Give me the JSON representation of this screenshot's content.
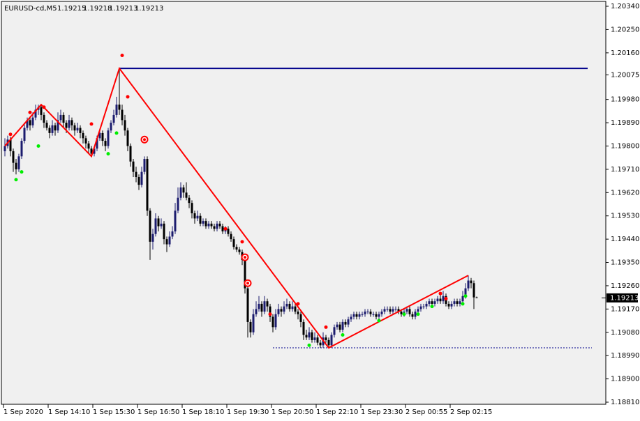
{
  "chart_data": {
    "type": "candlestick",
    "title": "EURUSD-cd,M5",
    "categories": [
      "1 Sep 2020",
      null,
      null,
      null,
      null,
      null,
      null,
      null,
      null,
      null,
      null,
      null,
      null,
      null,
      null,
      null,
      "1 Sep 14:10",
      null,
      null,
      null,
      null,
      null,
      null,
      null,
      null,
      null,
      null,
      null,
      null,
      null,
      null,
      null,
      "1 Sep 15:30",
      null,
      null,
      null,
      null,
      null,
      null,
      null,
      null,
      null,
      null,
      null,
      null,
      null,
      null,
      null,
      "1 Sep 16:50",
      null,
      null,
      null,
      null,
      null,
      null,
      null,
      null,
      null,
      null,
      null,
      null,
      null,
      null,
      null,
      "1 Sep 18:10",
      null,
      null,
      null,
      null,
      null,
      null,
      null,
      null,
      null,
      null,
      null,
      null,
      null,
      null,
      null,
      "1 Sep 19:30",
      null,
      null,
      null,
      null,
      null,
      null,
      null,
      null,
      null,
      null,
      null,
      null,
      null,
      null,
      null,
      "1 Sep 20:50",
      null,
      null,
      null,
      null,
      null,
      null,
      null,
      null,
      null,
      null,
      null,
      null,
      null,
      null,
      null,
      "1 Sep 22:10",
      null,
      null,
      null,
      null,
      null,
      null,
      null,
      null,
      null,
      null,
      null,
      null,
      null,
      null,
      null,
      "1 Sep 23:30",
      null,
      null,
      null,
      null,
      null,
      null,
      null,
      null,
      null,
      null,
      null,
      null,
      null,
      null,
      null,
      "2 Sep 00:55",
      null,
      null,
      null,
      null,
      null,
      null,
      null,
      null,
      null,
      null,
      null,
      null,
      null,
      null,
      null,
      "2 Sep 02:15",
      null,
      null,
      null,
      null,
      null,
      null,
      null,
      null,
      null
    ],
    "candles": [
      [
        1.1978,
        1.1983,
        1.1976,
        1.198
      ],
      [
        1.198,
        1.1984,
        1.1979,
        1.19825
      ],
      [
        1.19825,
        1.19835,
        1.1976,
        1.1978
      ],
      [
        1.1978,
        1.1979,
        1.197,
        1.19735
      ],
      [
        1.19735,
        1.1975,
        1.1969,
        1.1971
      ],
      [
        1.1971,
        1.1977,
        1.197,
        1.1976
      ],
      [
        1.1976,
        1.1983,
        1.1975,
        1.1982
      ],
      [
        1.1982,
        1.1989,
        1.1981,
        1.1987
      ],
      [
        1.1987,
        1.1991,
        1.1986,
        1.199
      ],
      [
        1.199,
        1.1991,
        1.1986,
        1.1988
      ],
      [
        1.1988,
        1.1993,
        1.1987,
        1.1991
      ],
      [
        1.1991,
        1.1996,
        1.199,
        1.1994
      ],
      [
        1.1994,
        1.1996,
        1.1992,
        1.1995
      ],
      [
        1.1995,
        1.1996,
        1.199,
        1.1992
      ],
      [
        1.1992,
        1.1993,
        1.1987,
        1.1989
      ],
      [
        1.1989,
        1.199,
        1.1986,
        1.1987
      ],
      [
        1.1987,
        1.1988,
        1.1983,
        1.1985
      ],
      [
        1.1985,
        1.199,
        1.1984,
        1.1988
      ],
      [
        1.1988,
        1.1989,
        1.1984,
        1.1986
      ],
      [
        1.1986,
        1.1993,
        1.1985,
        1.199
      ],
      [
        1.199,
        1.1994,
        1.1989,
        1.1992
      ],
      [
        1.1992,
        1.1993,
        1.1987,
        1.1989
      ],
      [
        1.1989,
        1.199,
        1.1985,
        1.1987
      ],
      [
        1.1987,
        1.1992,
        1.1986,
        1.199
      ],
      [
        1.199,
        1.1991,
        1.1986,
        1.1988
      ],
      [
        1.1988,
        1.1989,
        1.1984,
        1.1986
      ],
      [
        1.1986,
        1.1989,
        1.1985,
        1.1987
      ],
      [
        1.1987,
        1.1988,
        1.1983,
        1.1985
      ],
      [
        1.1985,
        1.1986,
        1.1981,
        1.1983
      ],
      [
        1.1983,
        1.1984,
        1.1979,
        1.1981
      ],
      [
        1.1981,
        1.1982,
        1.1977,
        1.1979
      ],
      [
        1.1979,
        1.198,
        1.1976,
        1.1977
      ],
      [
        1.1977,
        1.198,
        1.1976,
        1.1979
      ],
      [
        1.1979,
        1.1984,
        1.1978,
        1.1983
      ],
      [
        1.1983,
        1.1986,
        1.1982,
        1.1985
      ],
      [
        1.1985,
        1.1986,
        1.198,
        1.1982
      ],
      [
        1.1982,
        1.1983,
        1.1978,
        1.198
      ],
      [
        1.198,
        1.1987,
        1.1979,
        1.1986
      ],
      [
        1.1986,
        1.199,
        1.1985,
        1.1989
      ],
      [
        1.1989,
        1.1994,
        1.1988,
        1.1992
      ],
      [
        1.1992,
        1.1999,
        1.1991,
        1.1996
      ],
      [
        1.1996,
        1.201,
        1.1992,
        1.1994
      ],
      [
        1.1994,
        1.1996,
        1.1988,
        1.199
      ],
      [
        1.199,
        1.1992,
        1.1984,
        1.1986
      ],
      [
        1.1986,
        1.1987,
        1.1978,
        1.198
      ],
      [
        1.198,
        1.1981,
        1.1972,
        1.1974
      ],
      [
        1.1974,
        1.1975,
        1.1968,
        1.197
      ],
      [
        1.197,
        1.1972,
        1.1966,
        1.1968
      ],
      [
        1.1968,
        1.1969,
        1.1963,
        1.1965
      ],
      [
        1.1965,
        1.1972,
        1.1964,
        1.197
      ],
      [
        1.197,
        1.1976,
        1.1969,
        1.1975
      ],
      [
        1.1975,
        1.1976,
        1.1953,
        1.1955
      ],
      [
        1.1955,
        1.1956,
        1.1936,
        1.1943
      ],
      [
        1.1943,
        1.1948,
        1.194,
        1.1946
      ],
      [
        1.1946,
        1.1954,
        1.1945,
        1.1952
      ],
      [
        1.1952,
        1.1953,
        1.1947,
        1.1949
      ],
      [
        1.1949,
        1.1952,
        1.1948,
        1.195
      ],
      [
        1.195,
        1.1951,
        1.1942,
        1.1944
      ],
      [
        1.1944,
        1.1945,
        1.1939,
        1.1942
      ],
      [
        1.1942,
        1.1947,
        1.1941,
        1.1945
      ],
      [
        1.1945,
        1.1949,
        1.1944,
        1.1947
      ],
      [
        1.1947,
        1.1958,
        1.1946,
        1.1955
      ],
      [
        1.1955,
        1.1964,
        1.1954,
        1.196
      ],
      [
        1.196,
        1.1966,
        1.1959,
        1.1964
      ],
      [
        1.1964,
        1.1965,
        1.196,
        1.1962
      ],
      [
        1.1962,
        1.1966,
        1.1959,
        1.196
      ],
      [
        1.196,
        1.1961,
        1.1956,
        1.1958
      ],
      [
        1.1958,
        1.1959,
        1.1952,
        1.1954
      ],
      [
        1.1954,
        1.1955,
        1.195,
        1.1952
      ],
      [
        1.1952,
        1.1955,
        1.1951,
        1.1953
      ],
      [
        1.1953,
        1.1954,
        1.1949,
        1.195
      ],
      [
        1.195,
        1.1952,
        1.1949,
        1.1951
      ],
      [
        1.1951,
        1.1952,
        1.1948,
        1.1949
      ],
      [
        1.1949,
        1.1951,
        1.1948,
        1.195
      ],
      [
        1.195,
        1.1951,
        1.1948,
        1.1949
      ],
      [
        1.1949,
        1.195,
        1.1947,
        1.1948
      ],
      [
        1.1948,
        1.1951,
        1.1947,
        1.195
      ],
      [
        1.195,
        1.1951,
        1.1948,
        1.1949
      ],
      [
        1.1949,
        1.195,
        1.1946,
        1.1947
      ],
      [
        1.1947,
        1.1949,
        1.1946,
        1.1948
      ],
      [
        1.1948,
        1.1949,
        1.1945,
        1.1946
      ],
      [
        1.1946,
        1.1947,
        1.1943,
        1.1944
      ],
      [
        1.1944,
        1.1945,
        1.194,
        1.1941
      ],
      [
        1.1941,
        1.1942,
        1.1939,
        1.194
      ],
      [
        1.194,
        1.1941,
        1.1938,
        1.1939
      ],
      [
        1.1939,
        1.194,
        1.1934,
        1.1936
      ],
      [
        1.1936,
        1.1937,
        1.1923,
        1.1925
      ],
      [
        1.1925,
        1.1926,
        1.1906,
        1.1912
      ],
      [
        1.1912,
        1.1913,
        1.1906,
        1.1908
      ],
      [
        1.1908,
        1.1917,
        1.1907,
        1.1915
      ],
      [
        1.1915,
        1.192,
        1.1914,
        1.1917
      ],
      [
        1.1917,
        1.1922,
        1.1916,
        1.1919
      ],
      [
        1.1919,
        1.192,
        1.1914,
        1.1916
      ],
      [
        1.1916,
        1.1922,
        1.1915,
        1.192
      ],
      [
        1.192,
        1.1921,
        1.1916,
        1.1918
      ],
      [
        1.1918,
        1.1919,
        1.1912,
        1.1914
      ],
      [
        1.1914,
        1.1915,
        1.1908,
        1.191
      ],
      [
        1.191,
        1.1917,
        1.1909,
        1.1915
      ],
      [
        1.1915,
        1.1919,
        1.1914,
        1.1917
      ],
      [
        1.1917,
        1.1918,
        1.1914,
        1.1916
      ],
      [
        1.1916,
        1.192,
        1.1915,
        1.1918
      ],
      [
        1.1918,
        1.1921,
        1.1917,
        1.1919
      ],
      [
        1.1919,
        1.192,
        1.1916,
        1.1917
      ],
      [
        1.1917,
        1.192,
        1.1916,
        1.1918
      ],
      [
        1.1918,
        1.1919,
        1.1915,
        1.1916
      ],
      [
        1.1916,
        1.1917,
        1.1913,
        1.1915
      ],
      [
        1.1915,
        1.1916,
        1.191,
        1.1912
      ],
      [
        1.1912,
        1.1913,
        1.1905,
        1.1907
      ],
      [
        1.1907,
        1.1909,
        1.1905,
        1.1906
      ],
      [
        1.1906,
        1.191,
        1.1905,
        1.1908
      ],
      [
        1.1908,
        1.1909,
        1.1904,
        1.1905
      ],
      [
        1.1905,
        1.1908,
        1.1904,
        1.1906
      ],
      [
        1.1906,
        1.1907,
        1.1903,
        1.1904
      ],
      [
        1.1904,
        1.1905,
        1.1902,
        1.1903
      ],
      [
        1.1903,
        1.1908,
        1.1902,
        1.1906
      ],
      [
        1.1906,
        1.1907,
        1.1904,
        1.1905
      ],
      [
        1.1905,
        1.1906,
        1.1902,
        1.1903
      ],
      [
        1.1903,
        1.1908,
        1.1902,
        1.1907
      ],
      [
        1.1907,
        1.1911,
        1.1906,
        1.191
      ],
      [
        1.191,
        1.1912,
        1.1909,
        1.1911
      ],
      [
        1.1911,
        1.1912,
        1.1908,
        1.1909
      ],
      [
        1.1909,
        1.1913,
        1.1908,
        1.1912
      ],
      [
        1.1912,
        1.1913,
        1.191,
        1.1911
      ],
      [
        1.1911,
        1.1914,
        1.191,
        1.1913
      ],
      [
        1.1913,
        1.1915,
        1.1912,
        1.1914
      ],
      [
        1.1914,
        1.1916,
        1.1913,
        1.1915
      ],
      [
        1.1915,
        1.1916,
        1.1913,
        1.1914
      ],
      [
        1.1914,
        1.1916,
        1.1913,
        1.1915
      ],
      [
        1.1915,
        1.1916,
        1.1914,
        1.1915
      ],
      [
        1.1915,
        1.1917,
        1.1914,
        1.1916
      ],
      [
        1.1916,
        1.1917,
        1.1915,
        1.1916
      ],
      [
        1.1916,
        1.1917,
        1.1914,
        1.1915
      ],
      [
        1.1915,
        1.1916,
        1.1914,
        1.1915
      ],
      [
        1.1915,
        1.1916,
        1.1913,
        1.1914
      ],
      [
        1.1914,
        1.1916,
        1.1913,
        1.1915
      ],
      [
        1.1915,
        1.1917,
        1.1914,
        1.1916
      ],
      [
        1.1916,
        1.1918,
        1.1915,
        1.1917
      ],
      [
        1.1917,
        1.1918,
        1.1916,
        1.1917
      ],
      [
        1.1917,
        1.1918,
        1.1915,
        1.1916
      ],
      [
        1.1916,
        1.1918,
        1.1915,
        1.1917
      ],
      [
        1.1917,
        1.1918,
        1.1916,
        1.1917
      ],
      [
        1.1917,
        1.1918,
        1.1915,
        1.1916
      ],
      [
        1.1916,
        1.1917,
        1.1914,
        1.1915
      ],
      [
        1.1915,
        1.1917,
        1.1914,
        1.1916
      ],
      [
        1.1916,
        1.1918,
        1.1915,
        1.1917
      ],
      [
        1.1917,
        1.1918,
        1.1914,
        1.1915
      ],
      [
        1.1915,
        1.1916,
        1.1913,
        1.1914
      ],
      [
        1.1914,
        1.1917,
        1.1913,
        1.1916
      ],
      [
        1.1916,
        1.1918,
        1.1915,
        1.1917
      ],
      [
        1.1917,
        1.1919,
        1.1916,
        1.1918
      ],
      [
        1.1918,
        1.1919,
        1.1917,
        1.1918
      ],
      [
        1.1918,
        1.192,
        1.1917,
        1.1919
      ],
      [
        1.1919,
        1.1921,
        1.1918,
        1.192
      ],
      [
        1.192,
        1.1921,
        1.1918,
        1.1919
      ],
      [
        1.1919,
        1.1921,
        1.1918,
        1.192
      ],
      [
        1.192,
        1.1922,
        1.1919,
        1.1921
      ],
      [
        1.1921,
        1.1923,
        1.1919,
        1.192
      ],
      [
        1.192,
        1.1924,
        1.1919,
        1.1922
      ],
      [
        1.1922,
        1.1923,
        1.1918,
        1.1919
      ],
      [
        1.1919,
        1.192,
        1.1917,
        1.1918
      ],
      [
        1.1918,
        1.192,
        1.1917,
        1.1919
      ],
      [
        1.1919,
        1.1921,
        1.1918,
        1.192
      ],
      [
        1.192,
        1.1921,
        1.1918,
        1.1919
      ],
      [
        1.1919,
        1.1921,
        1.1918,
        1.192
      ],
      [
        1.192,
        1.1924,
        1.1919,
        1.1922
      ],
      [
        1.1922,
        1.1927,
        1.1921,
        1.1925
      ],
      [
        1.1925,
        1.193,
        1.1924,
        1.1928
      ],
      [
        1.1928,
        1.1929,
        1.1925,
        1.1927
      ],
      [
        1.1927,
        1.1928,
        1.1917,
        1.19215
      ],
      [
        1.19215,
        1.19218,
        1.19213,
        1.19213
      ]
    ],
    "bull_color": "#1c1c6e",
    "bear_color": "#000000",
    "ylim": [
      1.1881,
      1.2034
    ],
    "yticks": [
      {
        "value": 1.2034,
        "label": "1.20340"
      },
      {
        "value": 1.2025,
        "label": "1.20250"
      },
      {
        "value": 1.2016,
        "label": "1.20160"
      },
      1.20075,
      {
        "value": 1.1998,
        "label": "1.19980"
      },
      {
        "value": 1.1989,
        "label": "1.19890"
      },
      {
        "value": 1.198,
        "label": "1.19800"
      },
      {
        "value": 1.1971,
        "label": "1.19710"
      },
      {
        "value": 1.1962,
        "label": "1.19620"
      },
      {
        "value": 1.1953,
        "label": "1.19530"
      },
      {
        "value": 1.1944,
        "label": "1.19440"
      },
      {
        "value": 1.1935,
        "label": "1.19350"
      },
      {
        "value": 1.1926,
        "label": "1.19260"
      },
      {
        "value": 1.1917,
        "label": "1.19170"
      },
      {
        "value": 1.1908,
        "label": "1.19080"
      },
      {
        "value": 1.1899,
        "label": "1.18990"
      },
      {
        "value": 1.189,
        "label": "1.18900"
      },
      {
        "value": 1.1881,
        "label": "1.18810"
      }
    ],
    "grid": false,
    "zigzag": {
      "color": "#ff0000",
      "x": [
        0,
        13,
        31,
        41,
        116,
        166
      ],
      "values": [
        1.198,
        1.1996,
        1.1976,
        1.201,
        1.1902,
        1.193
      ]
    },
    "levels": [
      {
        "value": 1.201,
        "from": 41,
        "color": "#00008b",
        "style": "solid"
      },
      {
        "value": 1.1902,
        "from": 96,
        "color": "#00008b",
        "style": "dotted"
      }
    ],
    "up_fractals": {
      "color": "#ff0000",
      "x": [
        2,
        9,
        14,
        31,
        42,
        44,
        79,
        85,
        95,
        105,
        115,
        156,
        158
      ],
      "values": [
        1.19845,
        1.1993,
        1.1995,
        1.19885,
        1.2015,
        1.1999,
        1.1948,
        1.1943,
        1.1915,
        1.1919,
        1.191,
        1.1923,
        1.1921
      ]
    },
    "down_fractals": {
      "color": "#00ee00",
      "x": [
        4,
        6,
        12,
        37,
        40,
        109,
        121,
        134,
        143,
        148,
        153,
        164,
        165
      ],
      "values": [
        1.1967,
        1.197,
        1.198,
        1.1977,
        1.1985,
        1.1903,
        1.1907,
        1.19125,
        1.1915,
        1.1915,
        1.1918,
        1.1919,
        1.1922
      ]
    },
    "signals": {
      "color": "#ff0000",
      "x": [
        50,
        86,
        87
      ],
      "values": [
        1.19825,
        1.1937,
        1.1927
      ]
    }
  }
}
